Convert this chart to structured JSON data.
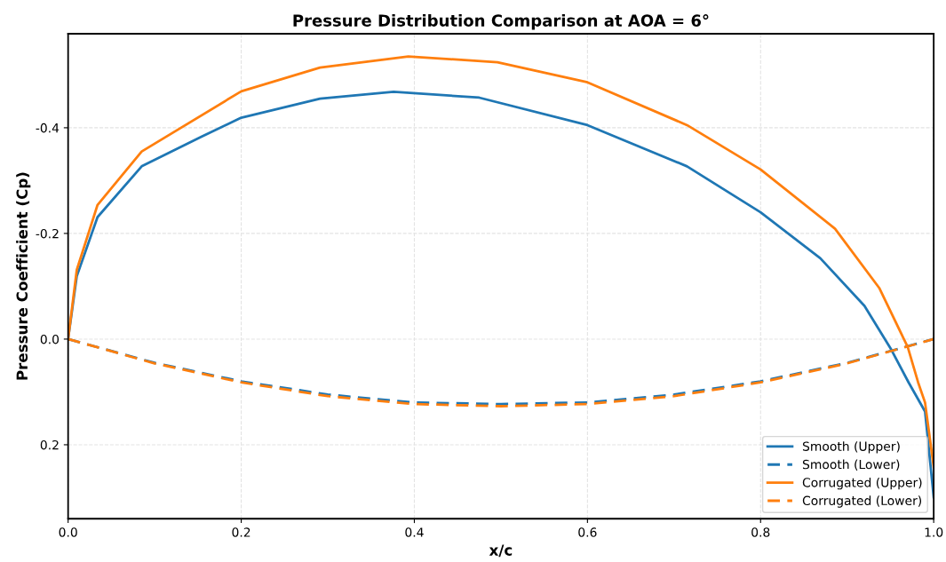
{
  "chart_data": {
    "type": "line",
    "title": "Pressure Distribution Comparison at AOA = 6°",
    "xlabel": "x/c",
    "ylabel": "Pressure Coefficient (Cp)",
    "xlim": [
      0,
      1
    ],
    "ylim": [
      0.34,
      -0.578
    ],
    "xticks": [
      {
        "value": 0,
        "label": "0.0"
      },
      {
        "value": 0.2,
        "label": "0.2"
      },
      {
        "value": 0.4,
        "label": "0.4"
      },
      {
        "value": 0.6,
        "label": "0.6"
      },
      {
        "value": 0.8,
        "label": "0.8"
      },
      {
        "value": 1.0,
        "label": "1.0"
      }
    ],
    "yticks": [
      {
        "value": -0.4,
        "label": "-0.4"
      },
      {
        "value": -0.2,
        "label": "-0.2"
      },
      {
        "value": 0,
        "label": "0.0"
      },
      {
        "value": 0.2,
        "label": "0.2"
      }
    ],
    "grid": true,
    "legend": "bottom right",
    "marker": "none",
    "series": [
      {
        "name": "Smooth (Upper)",
        "color": "#1f77b4",
        "line_style": "solid",
        "x": [
          0,
          0.01,
          0.034,
          0.085,
          0.154,
          0.2,
          0.291,
          0.376,
          0.475,
          0.6,
          0.715,
          0.8,
          0.869,
          0.92,
          0.951,
          0.971,
          0.99,
          1.0
        ],
        "values": [
          0,
          -0.119,
          -0.231,
          -0.327,
          -0.383,
          -0.419,
          -0.455,
          -0.468,
          -0.457,
          -0.405,
          -0.327,
          -0.24,
          -0.153,
          -0.063,
          0.02,
          0.082,
          0.137,
          0.299
        ]
      },
      {
        "name": "Smooth (Lower)",
        "color": "#1f77b4",
        "line_style": "dashed",
        "x": [
          0,
          0.1,
          0.2,
          0.3,
          0.4,
          0.5,
          0.6,
          0.7,
          0.8,
          0.9,
          1.0
        ],
        "values": [
          0,
          0.045,
          0.08,
          0.105,
          0.12,
          0.123,
          0.12,
          0.105,
          0.08,
          0.045,
          0
        ]
      },
      {
        "name": "Corrugated (Upper)",
        "color": "#ff7f0e",
        "line_style": "solid",
        "x": [
          0,
          0.01,
          0.034,
          0.085,
          0.2,
          0.291,
          0.393,
          0.496,
          0.6,
          0.715,
          0.8,
          0.886,
          0.937,
          0.97,
          0.982,
          0.99,
          1.0
        ],
        "values": [
          0,
          -0.131,
          -0.254,
          -0.355,
          -0.469,
          -0.514,
          -0.535,
          -0.524,
          -0.486,
          -0.405,
          -0.321,
          -0.209,
          -0.097,
          0.015,
          0.082,
          0.12,
          0.242
        ]
      },
      {
        "name": "Corrugated (Lower)",
        "color": "#ff7f0e",
        "line_style": "dashed",
        "x": [
          0,
          0.1,
          0.2,
          0.3,
          0.4,
          0.5,
          0.6,
          0.7,
          0.8,
          0.9,
          1.0
        ],
        "values": [
          0,
          0.046,
          0.082,
          0.108,
          0.123,
          0.127,
          0.123,
          0.108,
          0.082,
          0.046,
          0
        ]
      }
    ]
  }
}
